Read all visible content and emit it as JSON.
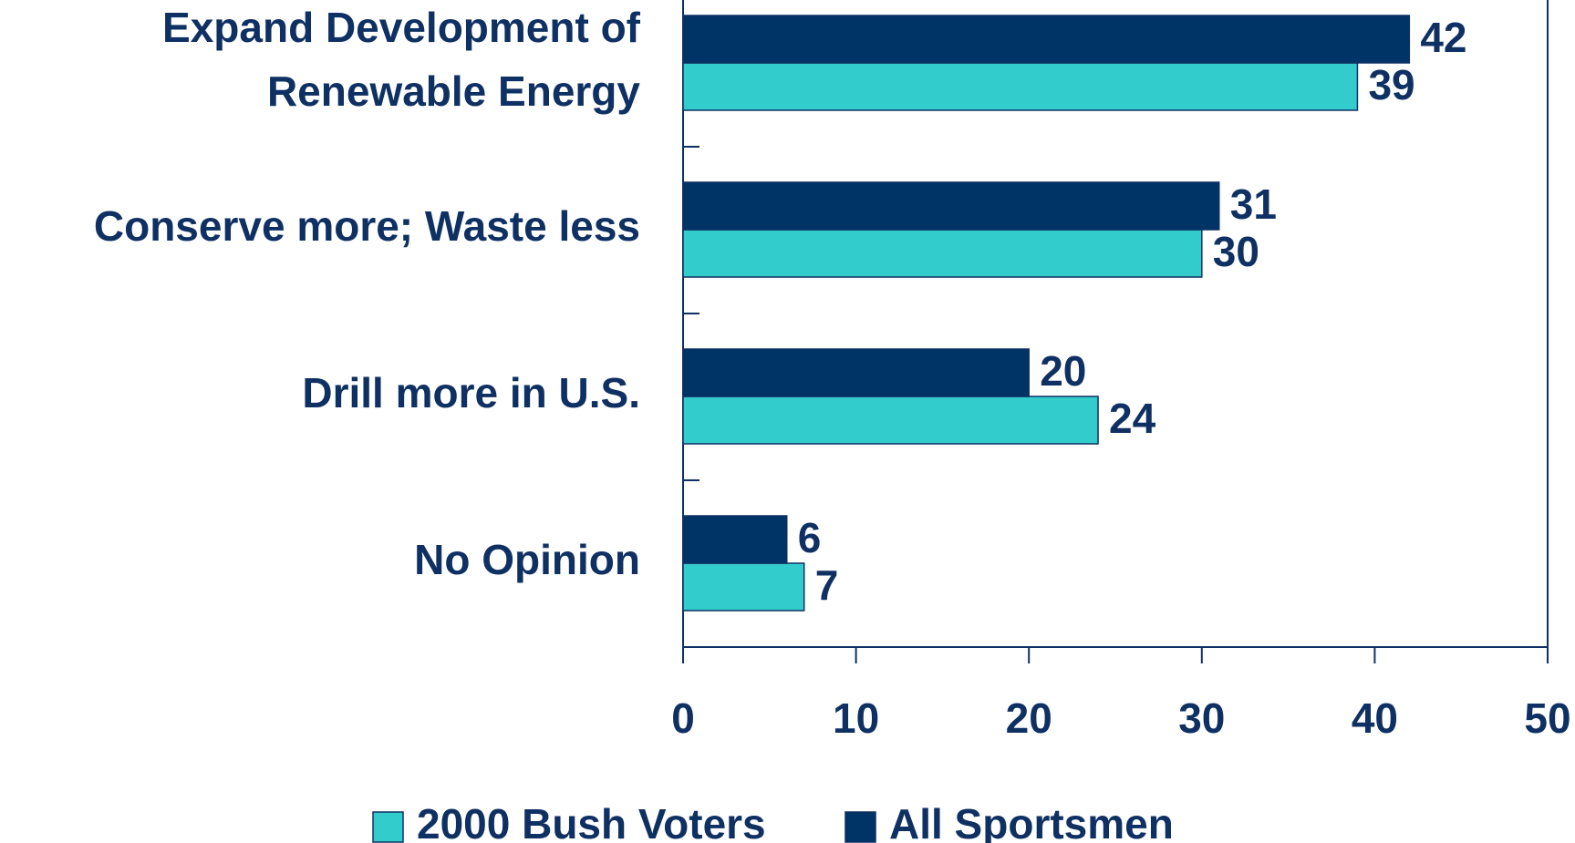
{
  "chart_data": {
    "type": "bar",
    "categories": [
      "Expand Development of\nRenewable Energy",
      "Conserve more; Waste less",
      "Drill more in U.S.",
      "No Opinion"
    ],
    "series": [
      {
        "name": "2000 Bush Voters",
        "color": "#33cccc",
        "values": [
          39,
          30,
          24,
          7
        ]
      },
      {
        "name": "All Sportsmen",
        "color": "#003366",
        "values": [
          42,
          31,
          20,
          6
        ]
      }
    ],
    "xlim": [
      0,
      50
    ],
    "xticks": [
      0,
      10,
      20,
      30,
      40,
      50
    ],
    "orientation": "horizontal",
    "legend": "bottom"
  }
}
